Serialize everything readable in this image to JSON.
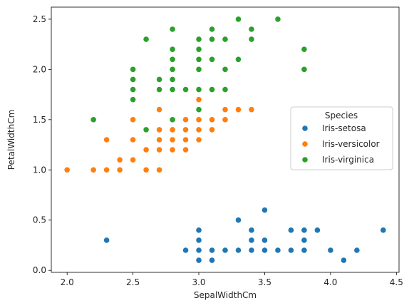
{
  "chart_data": {
    "type": "scatter",
    "title": "",
    "xlabel": "SepalWidthCm",
    "ylabel": "PetalWidthCm",
    "xlim": [
      1.88,
      4.52
    ],
    "ylim": [
      -0.02,
      2.62
    ],
    "xticks": [
      2.0,
      2.5,
      3.0,
      3.5,
      4.0,
      4.5
    ],
    "yticks": [
      0.0,
      0.5,
      1.0,
      1.5,
      2.0,
      2.5
    ],
    "grid": false,
    "legend": {
      "title": "Species",
      "placement": "center-right"
    },
    "series": [
      {
        "name": "Iris-setosa",
        "color": "#1f77b4",
        "x": [
          2.3,
          2.9,
          3.0,
          3.0,
          3.0,
          3.0,
          3.1,
          3.1,
          3.1,
          3.2,
          3.2,
          3.3,
          3.3,
          3.4,
          3.4,
          3.4,
          3.4,
          3.5,
          3.5,
          3.5,
          3.5,
          3.6,
          3.7,
          3.7,
          3.8,
          3.8,
          3.8,
          3.8,
          3.9,
          4.0,
          4.1,
          4.2,
          4.4
        ],
        "y": [
          0.3,
          0.2,
          0.1,
          0.2,
          0.3,
          0.4,
          0.1,
          0.2,
          0.2,
          0.2,
          0.2,
          0.2,
          0.5,
          0.2,
          0.3,
          0.4,
          0.2,
          0.2,
          0.3,
          0.6,
          0.2,
          0.2,
          0.2,
          0.4,
          0.2,
          0.3,
          0.4,
          0.2,
          0.4,
          0.2,
          0.1,
          0.2,
          0.4
        ]
      },
      {
        "name": "Iris-versicolor",
        "color": "#ff7f0e",
        "x": [
          2.0,
          2.2,
          2.2,
          2.3,
          2.3,
          2.4,
          2.4,
          2.4,
          2.5,
          2.5,
          2.5,
          2.6,
          2.6,
          2.6,
          2.7,
          2.7,
          2.7,
          2.7,
          2.7,
          2.8,
          2.8,
          2.8,
          2.8,
          2.8,
          2.9,
          2.9,
          2.9,
          2.9,
          2.9,
          3.0,
          3.0,
          3.0,
          3.0,
          3.0,
          3.1,
          3.1,
          3.1,
          3.2,
          3.2,
          3.3,
          3.4
        ],
        "y": [
          1.0,
          1.0,
          1.5,
          1.0,
          1.3,
          1.0,
          1.1,
          1.0,
          1.1,
          1.3,
          1.5,
          1.0,
          1.2,
          1.4,
          1.0,
          1.2,
          1.3,
          1.4,
          1.6,
          1.2,
          1.3,
          1.4,
          1.5,
          1.3,
          1.3,
          1.4,
          1.5,
          1.3,
          1.2,
          1.4,
          1.5,
          1.7,
          1.3,
          1.6,
          1.4,
          1.5,
          1.4,
          1.5,
          1.6,
          1.6,
          1.6
        ]
      },
      {
        "name": "Iris-virginica",
        "color": "#2ca02c",
        "x": [
          2.2,
          2.5,
          2.5,
          2.5,
          2.5,
          2.6,
          2.6,
          2.7,
          2.7,
          2.7,
          2.8,
          2.8,
          2.8,
          2.8,
          2.8,
          2.8,
          2.8,
          2.9,
          2.9,
          3.0,
          3.0,
          3.0,
          3.0,
          3.0,
          3.0,
          3.0,
          3.1,
          3.1,
          3.1,
          3.1,
          3.1,
          3.2,
          3.2,
          3.2,
          3.3,
          3.3,
          3.4,
          3.4,
          3.6,
          3.8,
          3.8
        ],
        "y": [
          1.5,
          1.7,
          1.8,
          1.9,
          2.0,
          1.4,
          2.3,
          1.8,
          1.9,
          1.9,
          1.5,
          1.8,
          1.9,
          2.0,
          2.1,
          2.2,
          2.4,
          1.8,
          1.8,
          1.6,
          1.8,
          2.0,
          2.1,
          2.2,
          2.3,
          1.8,
          1.8,
          2.1,
          2.3,
          2.4,
          1.8,
          1.8,
          2.0,
          2.3,
          2.1,
          2.5,
          2.3,
          2.4,
          2.5,
          2.0,
          2.2
        ]
      }
    ]
  }
}
